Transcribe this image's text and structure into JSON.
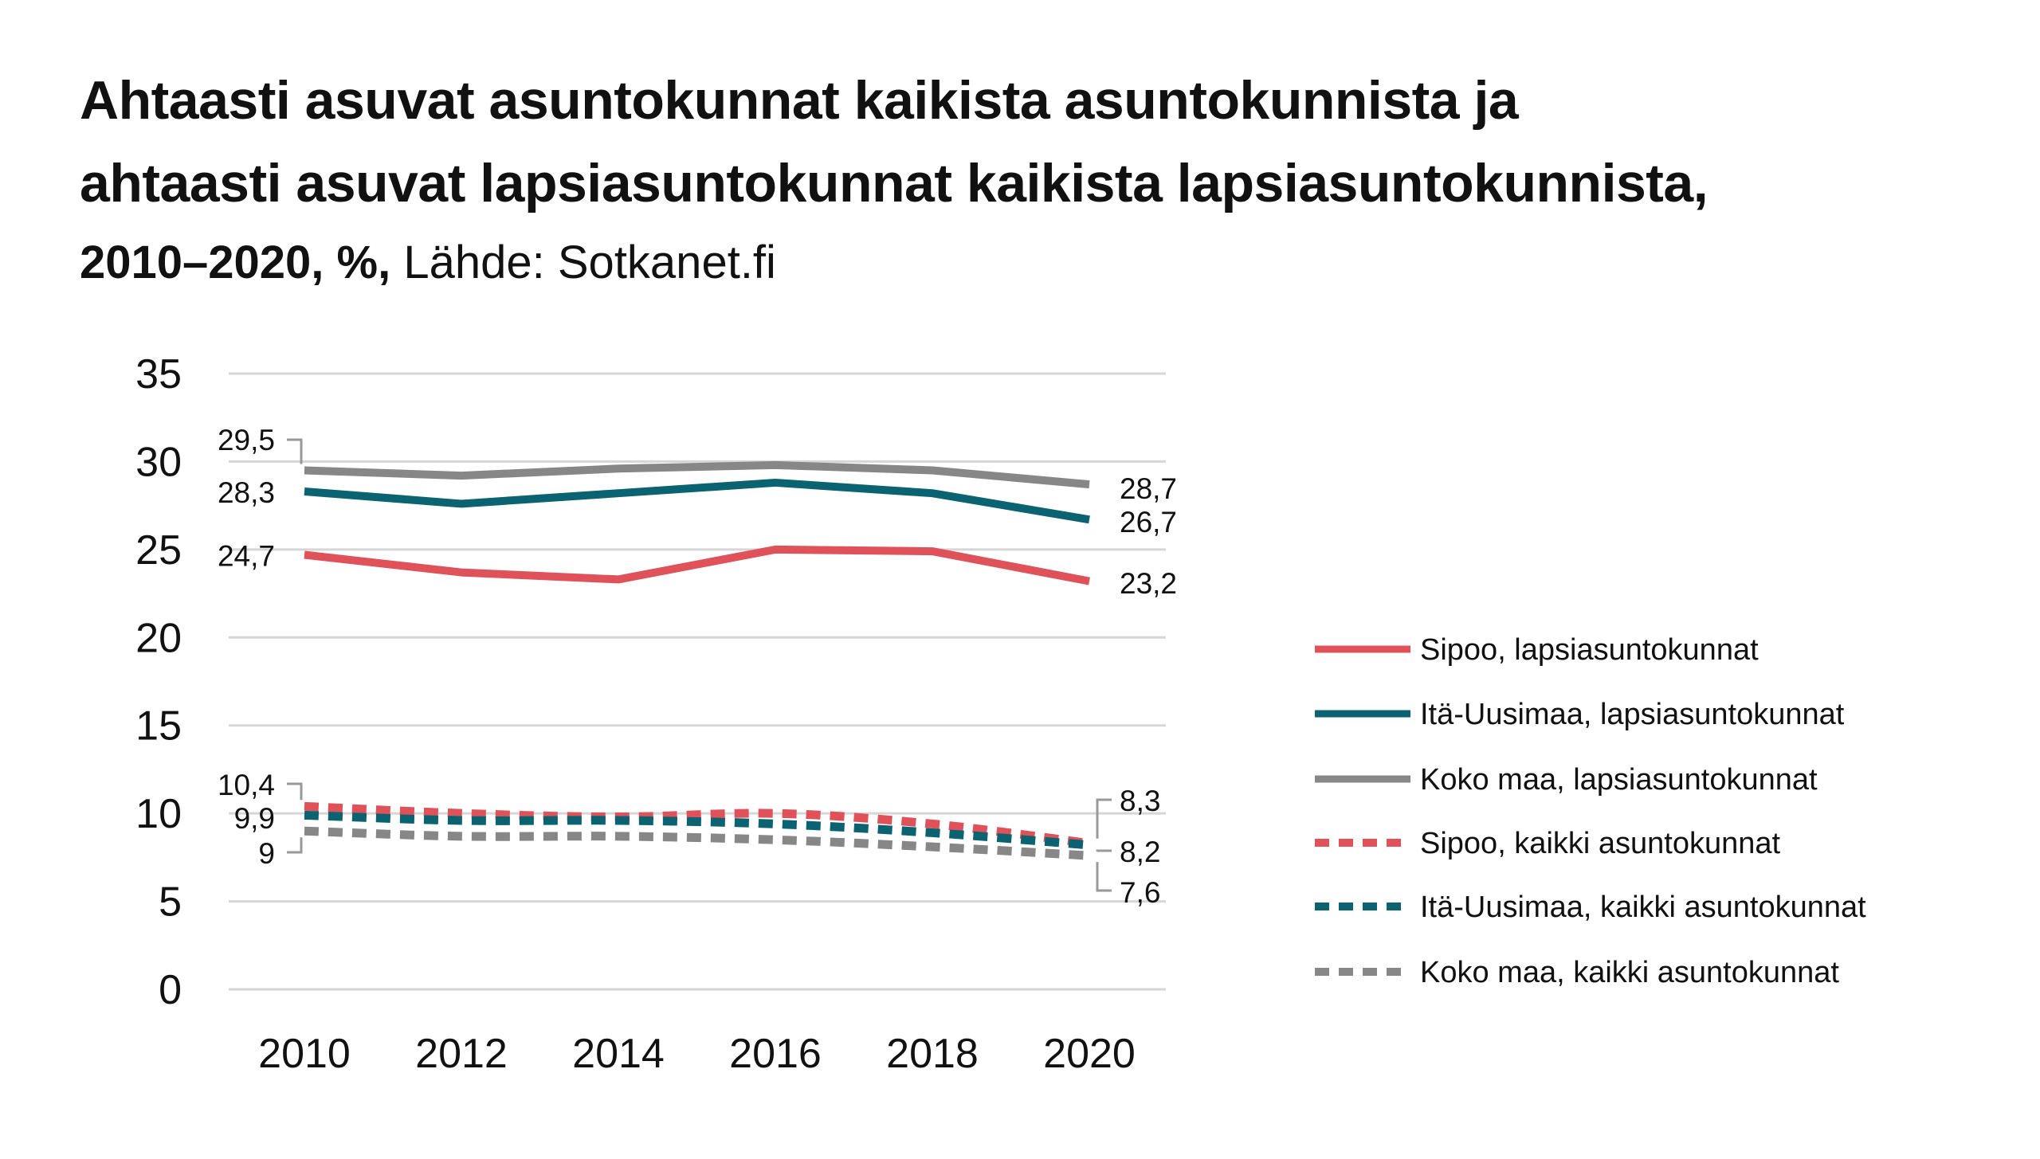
{
  "title_line1": "Ahtaasti asuvat asuntokunnat kaikista asuntokunnista ja",
  "title_line2": "ahtaasti asuvat lapsiasuntokunnat kaikista lapsiasuntokunnista,",
  "subtitle_bold": "2010–2020, %,",
  "subtitle_source": "Lähde: Sotkanet.fi",
  "chart_data": {
    "type": "line",
    "title": "Ahtaasti asuvat asuntokunnat kaikista asuntokunnista ja ahtaasti asuvat lapsiasuntokunnat kaikista lapsiasuntokunnista, 2010–2020, %",
    "xlabel": "",
    "ylabel": "",
    "x": [
      2010,
      2012,
      2014,
      2016,
      2018,
      2020
    ],
    "x_tick_labels": [
      "2010",
      "2012",
      "2014",
      "2016",
      "2018",
      "2020"
    ],
    "ylim": [
      0,
      35
    ],
    "y_ticks": [
      0,
      5,
      10,
      15,
      20,
      25,
      30,
      35
    ],
    "y_tick_labels": [
      "0",
      "5",
      "10",
      "15",
      "20",
      "25",
      "30",
      "35"
    ],
    "grid": true,
    "legend_position": "right",
    "series": [
      {
        "name": "Sipoo, lapsiasuntokunnat",
        "color": "#e0525a",
        "dashed": false,
        "values": [
          24.7,
          23.7,
          23.3,
          25.0,
          24.9,
          23.2
        ],
        "start_label": "24,7",
        "end_label": "23,2"
      },
      {
        "name": "Itä-Uusimaa, lapsiasuntokunnat",
        "color": "#0b6371",
        "dashed": false,
        "values": [
          28.3,
          27.6,
          28.2,
          28.8,
          28.2,
          26.7
        ],
        "start_label": "28,3",
        "end_label": "26,7"
      },
      {
        "name": "Koko maa, lapsiasuntokunnat",
        "color": "#878787",
        "dashed": false,
        "values": [
          29.5,
          29.2,
          29.6,
          29.8,
          29.5,
          28.7
        ],
        "start_label": "29,5",
        "end_label": "28,7"
      },
      {
        "name": "Sipoo, kaikki asuntokunnat",
        "color": "#e0525a",
        "dashed": true,
        "values": [
          10.4,
          10.0,
          9.8,
          10.0,
          9.4,
          8.3
        ],
        "start_label": "10,4",
        "end_label": "8,3"
      },
      {
        "name": "Itä-Uusimaa, kaikki asuntokunnat",
        "color": "#0b6371",
        "dashed": true,
        "values": [
          9.9,
          9.6,
          9.6,
          9.4,
          8.9,
          8.2
        ],
        "start_label": "9,9",
        "end_label": "8,2"
      },
      {
        "name": "Koko maa, kaikki asuntokunnat",
        "color": "#878787",
        "dashed": true,
        "values": [
          9.0,
          8.7,
          8.7,
          8.5,
          8.1,
          7.6
        ],
        "start_label": "9",
        "end_label": "7,6"
      }
    ]
  }
}
